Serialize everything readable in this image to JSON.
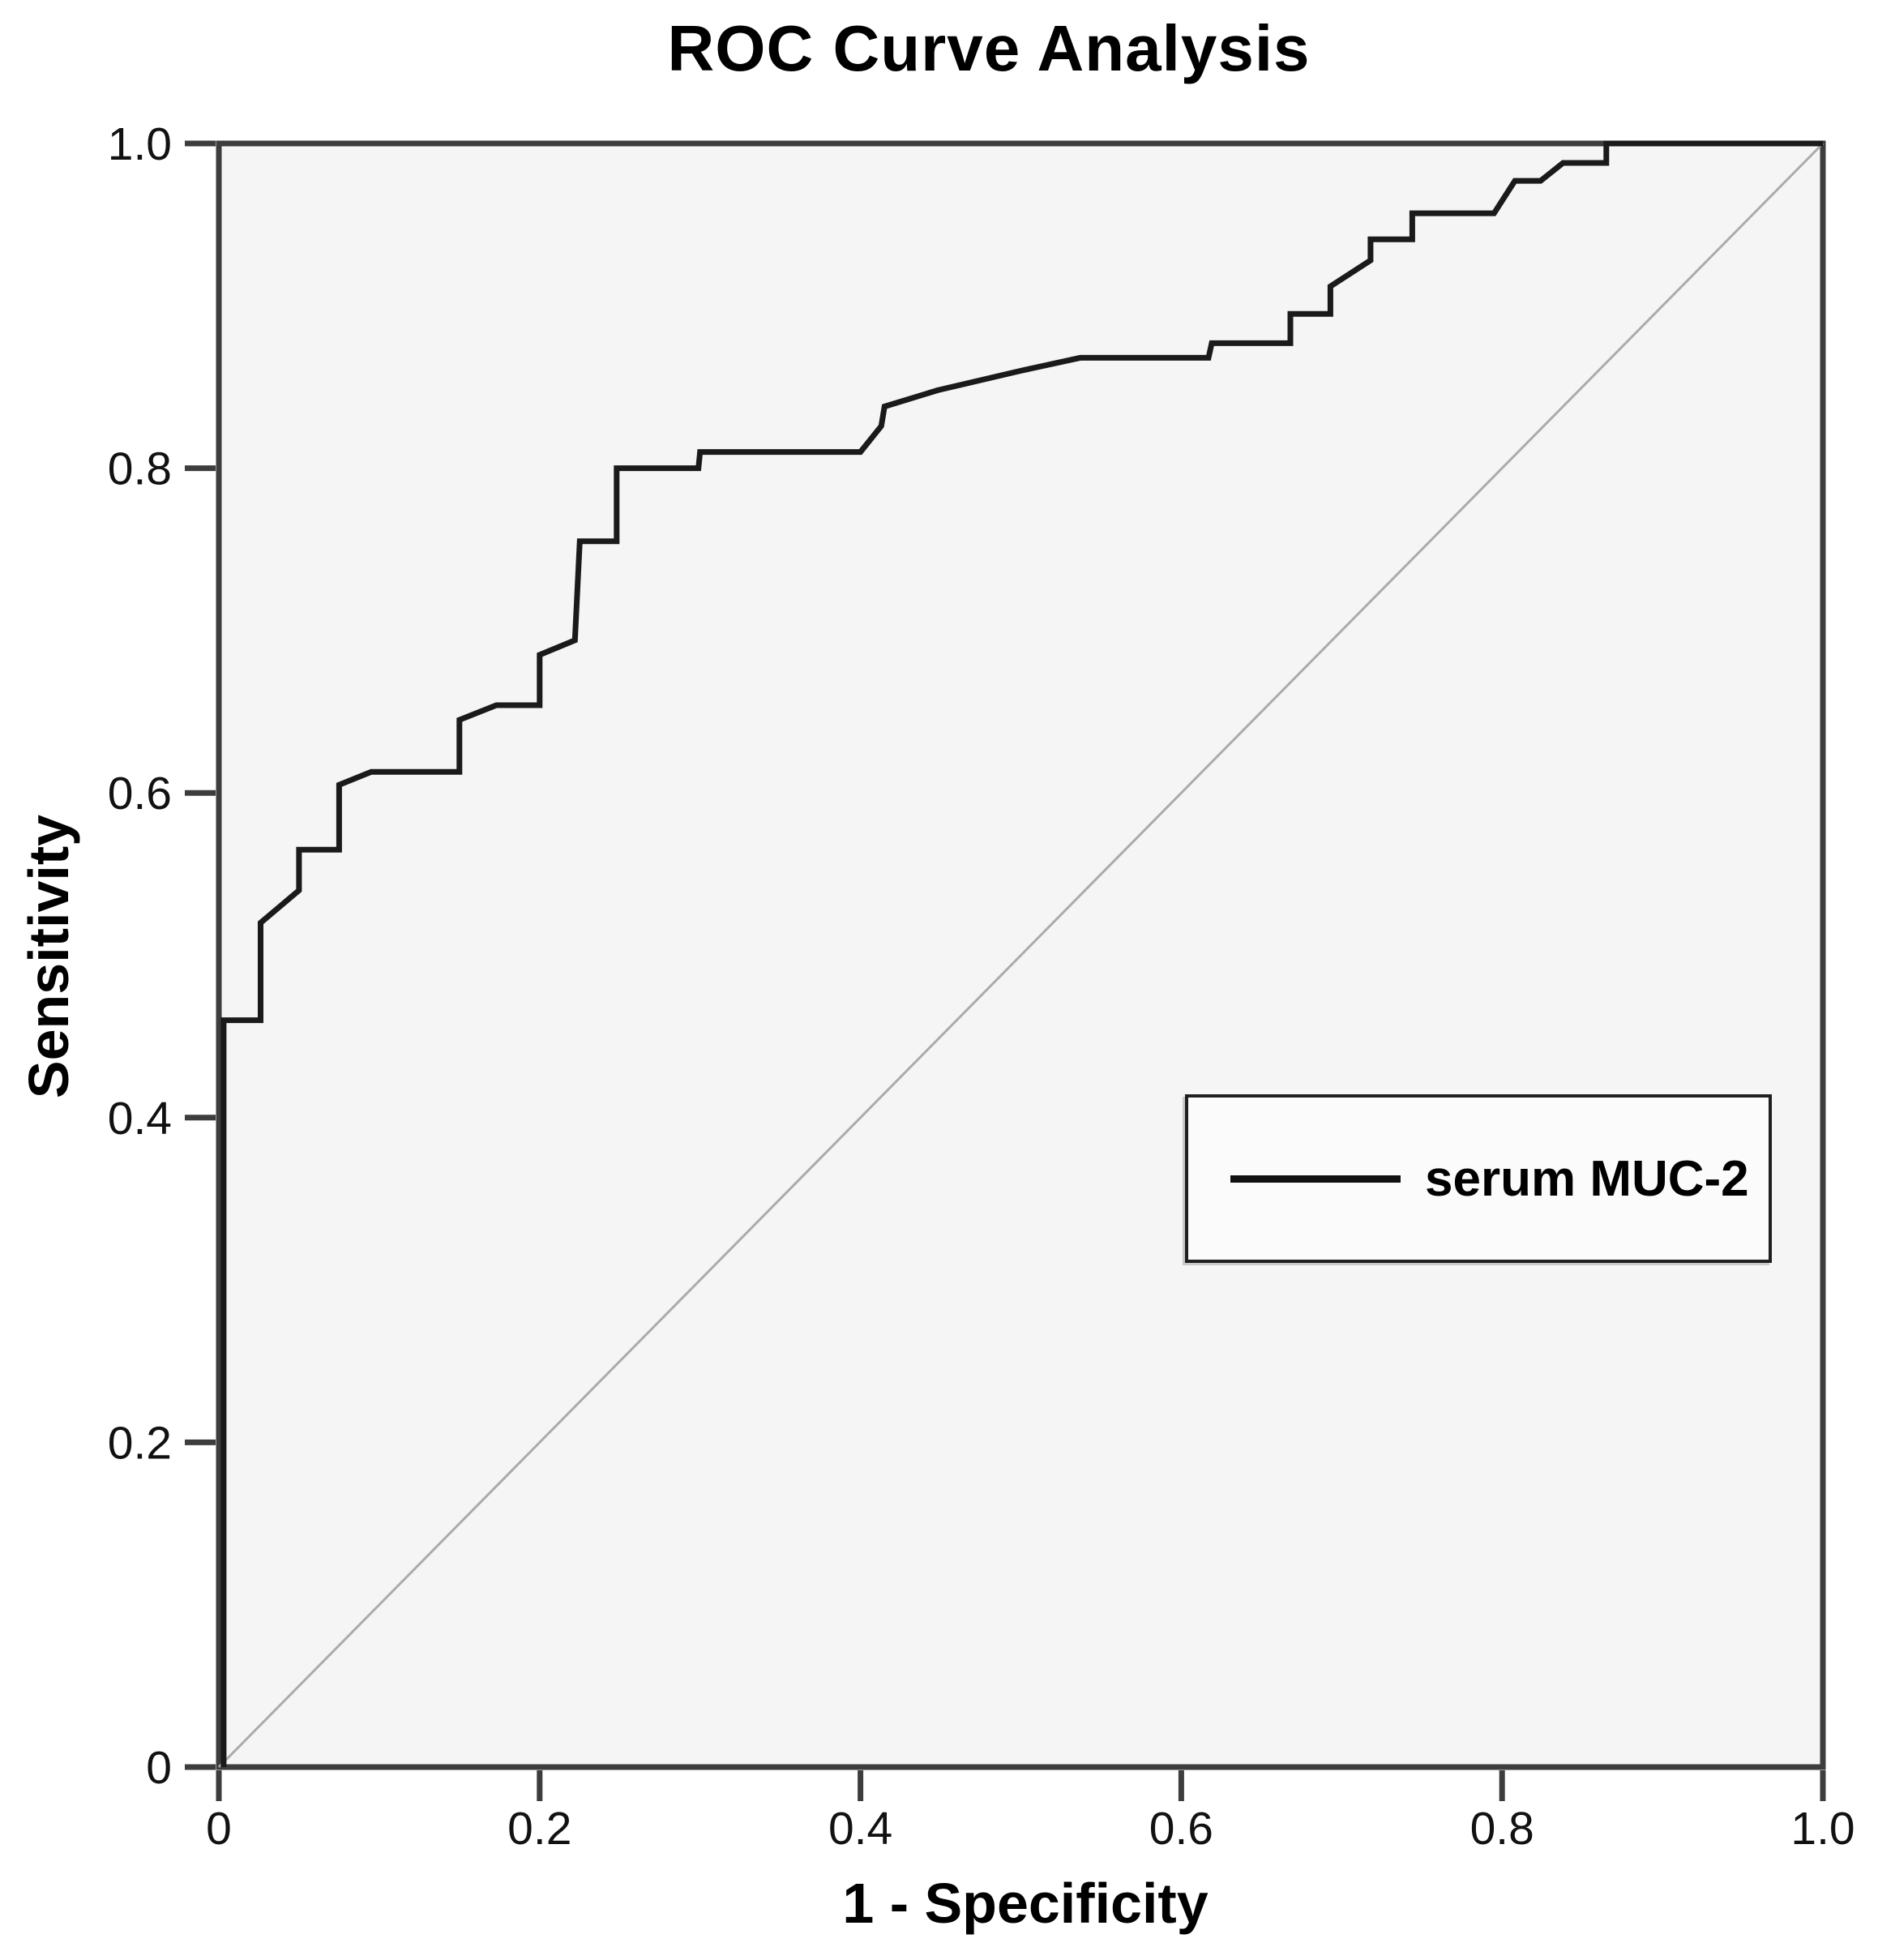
{
  "title": "ROC Curve Analysis",
  "axes": {
    "x_label": "1 - Specificity",
    "y_label": "Sensitivity"
  },
  "legend": {
    "series_label": "serum MUC-2",
    "position": "inside-right-middle"
  },
  "colors": {
    "curve": "#1a1a1a",
    "reference_line": "#ababab",
    "plot_background": "#f5f5f5",
    "axis": "#3d3d3d",
    "tick_text": "#111111",
    "legend_background": "#fbfbfb",
    "page_background": "#ffffff"
  },
  "chart_data": {
    "type": "line",
    "subtype": "roc-step-curve",
    "title": "ROC Curve Analysis",
    "xlabel": "1 - Specificity",
    "ylabel": "Sensitivity",
    "xlim": [
      0,
      1
    ],
    "ylim": [
      0,
      1
    ],
    "grid": false,
    "legend_position": "inside-right",
    "x_ticks": [
      0,
      0.2,
      0.4,
      0.6,
      0.8,
      1.0
    ],
    "x_tick_labels": [
      "0",
      "0.2",
      "0.4",
      "0.6",
      "0.8",
      "1.0"
    ],
    "y_ticks": [
      0,
      0.2,
      0.4,
      0.6,
      0.8,
      1.0
    ],
    "y_tick_labels": [
      "0",
      "0.2",
      "0.4",
      "0.6",
      "0.8",
      "1.0"
    ],
    "series": [
      {
        "name": "serum MUC-2",
        "role": "roc-curve",
        "color": "#1a1a1a",
        "stroke_width": 7,
        "points": [
          [
            0.003,
            0.0
          ],
          [
            0.003,
            0.46
          ],
          [
            0.026,
            0.46
          ],
          [
            0.026,
            0.52
          ],
          [
            0.05,
            0.54
          ],
          [
            0.05,
            0.565
          ],
          [
            0.075,
            0.565
          ],
          [
            0.075,
            0.605
          ],
          [
            0.095,
            0.613
          ],
          [
            0.15,
            0.613
          ],
          [
            0.15,
            0.645
          ],
          [
            0.173,
            0.654
          ],
          [
            0.2,
            0.654
          ],
          [
            0.2,
            0.685
          ],
          [
            0.222,
            0.694
          ],
          [
            0.225,
            0.755
          ],
          [
            0.248,
            0.755
          ],
          [
            0.248,
            0.8
          ],
          [
            0.299,
            0.8
          ],
          [
            0.3,
            0.81
          ],
          [
            0.4,
            0.81
          ],
          [
            0.413,
            0.826
          ],
          [
            0.415,
            0.838
          ],
          [
            0.448,
            0.848
          ],
          [
            0.5,
            0.86
          ],
          [
            0.537,
            0.868
          ],
          [
            0.617,
            0.868
          ],
          [
            0.619,
            0.877
          ],
          [
            0.668,
            0.877
          ],
          [
            0.668,
            0.895
          ],
          [
            0.693,
            0.895
          ],
          [
            0.693,
            0.912
          ],
          [
            0.718,
            0.928
          ],
          [
            0.718,
            0.941
          ],
          [
            0.744,
            0.941
          ],
          [
            0.744,
            0.957
          ],
          [
            0.795,
            0.957
          ],
          [
            0.808,
            0.977
          ],
          [
            0.824,
            0.977
          ],
          [
            0.838,
            0.988
          ],
          [
            0.865,
            0.988
          ],
          [
            0.865,
            1.0
          ],
          [
            1.0,
            1.0
          ]
        ]
      },
      {
        "name": "reference diagonal",
        "role": "reference-line",
        "color": "#ababab",
        "stroke_width": 3,
        "points": [
          [
            0,
            0
          ],
          [
            1,
            1
          ]
        ]
      }
    ]
  }
}
